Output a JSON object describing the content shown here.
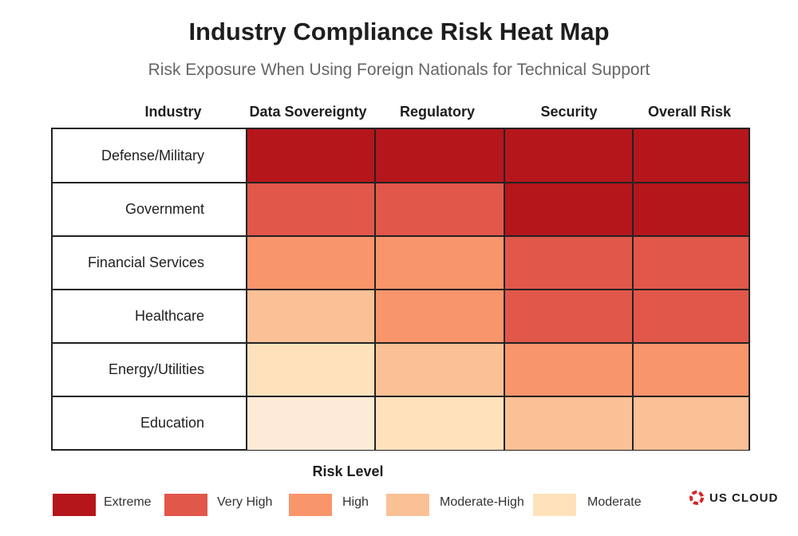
{
  "chart_data": {
    "type": "heatmap",
    "title": "Industry Compliance Risk Heat Map",
    "subtitle": "Risk Exposure When Using Foreign Nationals for Technical Support",
    "row_header": "Industry",
    "columns": [
      "Data Sovereignty",
      "Regulatory",
      "Security",
      "Overall Risk"
    ],
    "rows": [
      "Defense/Military",
      "Government",
      "Financial Services",
      "Healthcare",
      "Energy/Utilities",
      "Education"
    ],
    "values": [
      [
        "Extreme",
        "Extreme",
        "Extreme",
        "Extreme"
      ],
      [
        "Very High",
        "Very High",
        "Extreme",
        "Extreme"
      ],
      [
        "High",
        "High",
        "Very High",
        "Very High"
      ],
      [
        "Moderate-High",
        "High",
        "Very High",
        "Very High"
      ],
      [
        "Moderate",
        "Moderate-High",
        "High",
        "High"
      ],
      [
        "Low-Moderate",
        "Moderate",
        "Moderate-High",
        "Moderate-High"
      ]
    ],
    "legend_title": "Risk Level",
    "legend": [
      {
        "label": "Extreme",
        "color": "#b5161b"
      },
      {
        "label": "Very High",
        "color": "#e1574a"
      },
      {
        "label": "High",
        "color": "#f9956b"
      },
      {
        "label": "Moderate-High",
        "color": "#fbc196"
      },
      {
        "label": "Moderate",
        "color": "#fde2bc"
      }
    ],
    "level_colors": {
      "Extreme": "#b5161b",
      "Very High": "#e1574a",
      "High": "#f9956b",
      "Moderate-High": "#fbc196",
      "Moderate": "#fde2bc",
      "Low-Moderate": "#fdebd7"
    }
  },
  "brand": {
    "name": "US CLOUD",
    "color": "#d9232a"
  }
}
